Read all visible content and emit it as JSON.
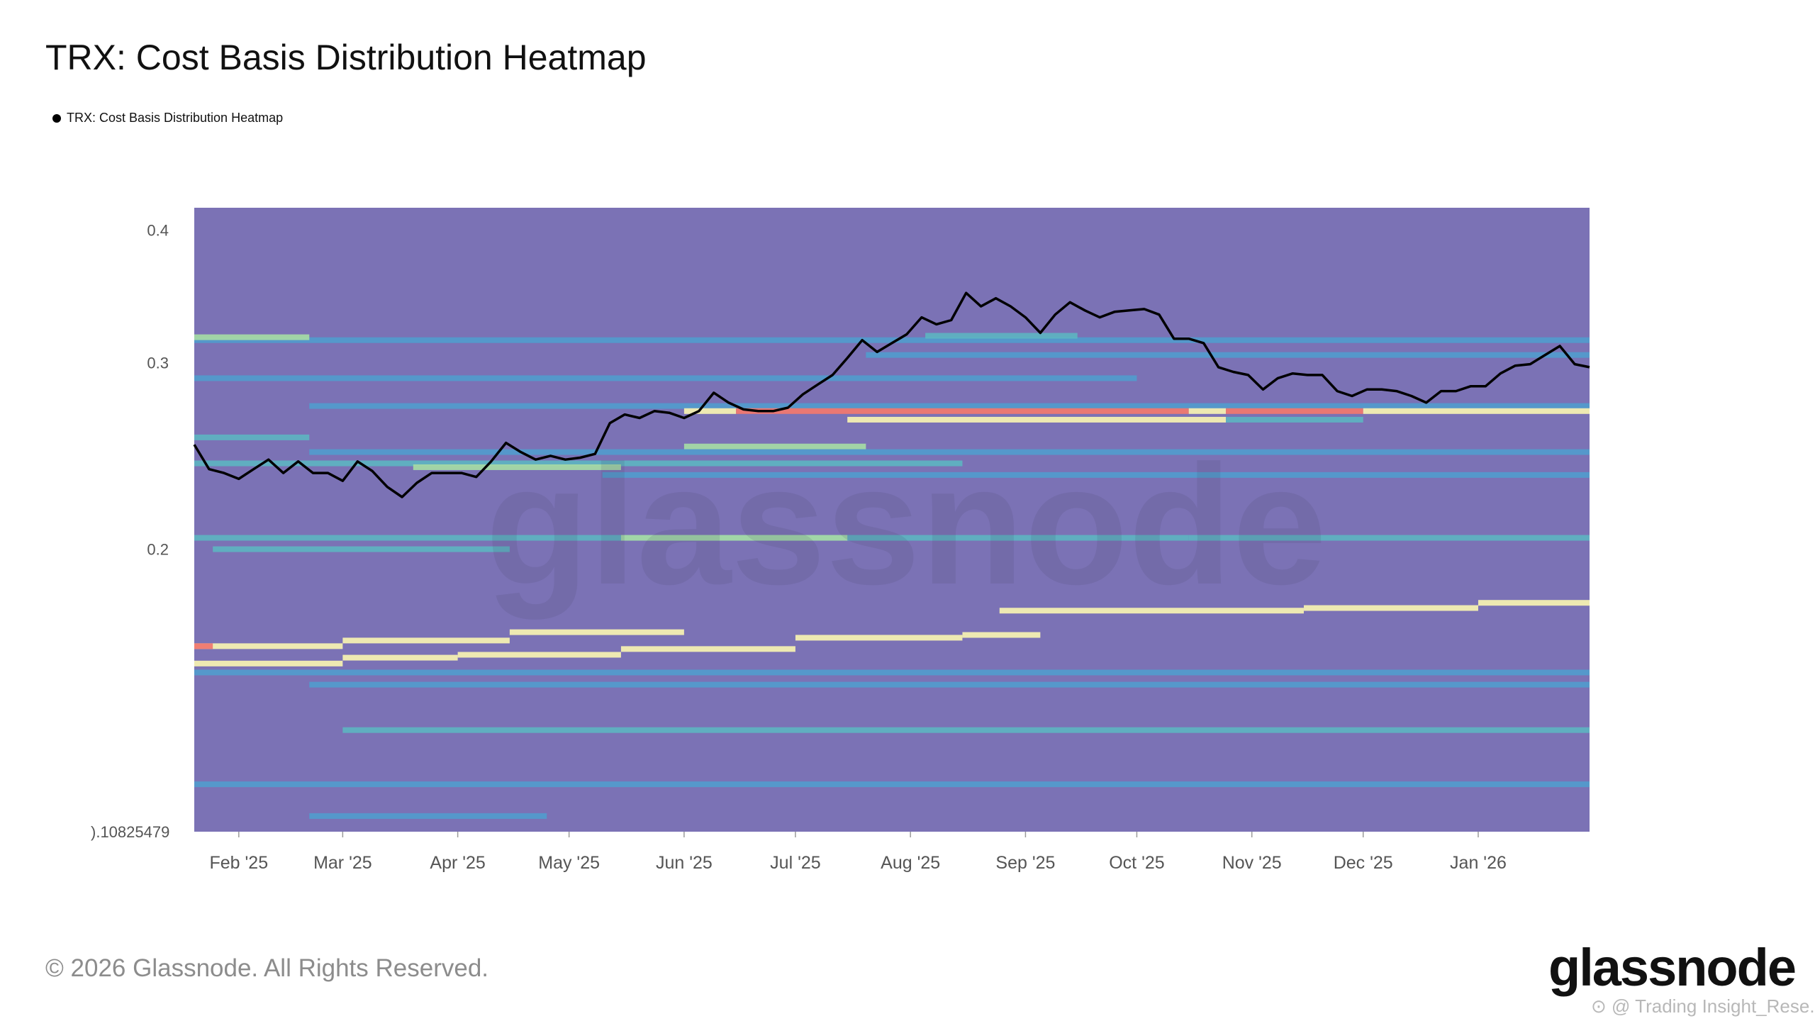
{
  "title": "TRX: Cost Basis Distribution Heatmap",
  "legend": {
    "label": "TRX: Cost Basis Distribution Heatmap",
    "marker_color": "#000000"
  },
  "footer": {
    "copyright": "© 2026 Glassnode. All Rights Reserved."
  },
  "brand": {
    "logo_text": "glassnode",
    "watermark_text": "glassnode"
  },
  "credit": {
    "text": "⊙ @ Trading Insight_Rese..."
  },
  "colors": {
    "background": "#7b72b5",
    "price_line": "#000000",
    "band_blue": "#4f9fcf",
    "band_teal": "#5cb8c2",
    "band_green": "#a4d8a5",
    "band_yellow": "#f4efb2",
    "band_red": "#f07870"
  },
  "chart_data": {
    "type": "heatmap",
    "title": "TRX: Cost Basis Distribution Heatmap",
    "x_axis": {
      "range": [
        "2025-01-20",
        "2026-01-31"
      ],
      "ticks": [
        "Feb '25",
        "Mar '25",
        "Apr '25",
        "May '25",
        "Jun '25",
        "Jul '25",
        "Aug '25",
        "Sep '25",
        "Oct '25",
        "Nov '25",
        "Dec '25",
        "Jan '26"
      ]
    },
    "y_axis": {
      "scale": "log",
      "range": [
        0.10825479,
        0.42
      ],
      "ticks": [
        "0.4",
        "0.3",
        "0.2",
        ").10825479"
      ]
    },
    "series": [
      {
        "name": "TRX: Cost Basis Distribution Heatmap",
        "type": "line",
        "points": [
          [
            "2025-01-20",
            0.251
          ],
          [
            "2025-01-24",
            0.238
          ],
          [
            "2025-01-28",
            0.236
          ],
          [
            "2025-02-01",
            0.233
          ],
          [
            "2025-02-05",
            0.238
          ],
          [
            "2025-02-09",
            0.243
          ],
          [
            "2025-02-13",
            0.236
          ],
          [
            "2025-02-17",
            0.242
          ],
          [
            "2025-02-21",
            0.236
          ],
          [
            "2025-02-25",
            0.236
          ],
          [
            "2025-03-01",
            0.232
          ],
          [
            "2025-03-05",
            0.242
          ],
          [
            "2025-03-09",
            0.237
          ],
          [
            "2025-03-13",
            0.229
          ],
          [
            "2025-03-17",
            0.224
          ],
          [
            "2025-03-21",
            0.231
          ],
          [
            "2025-03-25",
            0.236
          ],
          [
            "2025-03-29",
            0.236
          ],
          [
            "2025-04-02",
            0.236
          ],
          [
            "2025-04-06",
            0.234
          ],
          [
            "2025-04-10",
            0.242
          ],
          [
            "2025-04-14",
            0.252
          ],
          [
            "2025-04-18",
            0.247
          ],
          [
            "2025-04-22",
            0.243
          ],
          [
            "2025-04-26",
            0.245
          ],
          [
            "2025-04-30",
            0.243
          ],
          [
            "2025-05-04",
            0.244
          ],
          [
            "2025-05-08",
            0.246
          ],
          [
            "2025-05-12",
            0.263
          ],
          [
            "2025-05-16",
            0.268
          ],
          [
            "2025-05-20",
            0.266
          ],
          [
            "2025-05-24",
            0.27
          ],
          [
            "2025-05-28",
            0.269
          ],
          [
            "2025-06-01",
            0.266
          ],
          [
            "2025-06-05",
            0.27
          ],
          [
            "2025-06-09",
            0.281
          ],
          [
            "2025-06-13",
            0.275
          ],
          [
            "2025-06-17",
            0.271
          ],
          [
            "2025-06-21",
            0.27
          ],
          [
            "2025-06-25",
            0.27
          ],
          [
            "2025-06-29",
            0.272
          ],
          [
            "2025-07-03",
            0.28
          ],
          [
            "2025-07-07",
            0.286
          ],
          [
            "2025-07-11",
            0.292
          ],
          [
            "2025-07-15",
            0.303
          ],
          [
            "2025-07-19",
            0.315
          ],
          [
            "2025-07-23",
            0.307
          ],
          [
            "2025-07-27",
            0.313
          ],
          [
            "2025-07-31",
            0.319
          ],
          [
            "2025-08-04",
            0.331
          ],
          [
            "2025-08-08",
            0.326
          ],
          [
            "2025-08-12",
            0.329
          ],
          [
            "2025-08-16",
            0.349
          ],
          [
            "2025-08-20",
            0.339
          ],
          [
            "2025-08-24",
            0.345
          ],
          [
            "2025-08-28",
            0.339
          ],
          [
            "2025-09-01",
            0.331
          ],
          [
            "2025-09-05",
            0.32
          ],
          [
            "2025-09-09",
            0.333
          ],
          [
            "2025-09-13",
            0.342
          ],
          [
            "2025-09-17",
            0.336
          ],
          [
            "2025-09-21",
            0.331
          ],
          [
            "2025-09-25",
            0.335
          ],
          [
            "2025-09-29",
            0.336
          ],
          [
            "2025-10-03",
            0.337
          ],
          [
            "2025-10-07",
            0.333
          ],
          [
            "2025-10-11",
            0.316
          ],
          [
            "2025-10-15",
            0.316
          ],
          [
            "2025-10-19",
            0.313
          ],
          [
            "2025-10-23",
            0.297
          ],
          [
            "2025-10-27",
            0.294
          ],
          [
            "2025-10-31",
            0.292
          ],
          [
            "2025-11-04",
            0.283
          ],
          [
            "2025-11-08",
            0.29
          ],
          [
            "2025-11-12",
            0.293
          ],
          [
            "2025-11-16",
            0.292
          ],
          [
            "2025-11-20",
            0.292
          ],
          [
            "2025-11-24",
            0.282
          ],
          [
            "2025-11-28",
            0.279
          ],
          [
            "2025-12-02",
            0.283
          ],
          [
            "2025-12-06",
            0.283
          ],
          [
            "2025-12-10",
            0.282
          ],
          [
            "2025-12-14",
            0.279
          ],
          [
            "2025-12-18",
            0.275
          ],
          [
            "2025-12-22",
            0.282
          ],
          [
            "2025-12-26",
            0.282
          ],
          [
            "2025-12-30",
            0.285
          ],
          [
            "2026-01-03",
            0.285
          ],
          [
            "2026-01-07",
            0.293
          ],
          [
            "2026-01-11",
            0.298
          ],
          [
            "2026-01-15",
            0.299
          ],
          [
            "2026-01-19",
            0.305
          ],
          [
            "2026-01-23",
            0.311
          ],
          [
            "2026-01-27",
            0.299
          ],
          [
            "2026-01-31",
            0.297
          ]
        ]
      },
      {
        "name": "cost basis density",
        "type": "bands",
        "levels": [
          "blue",
          "teal",
          "green",
          "yellow",
          "red"
        ],
        "bands": [
          {
            "price": 0.315,
            "start": "2025-01-20",
            "end": "2026-01-31",
            "level": "blue"
          },
          {
            "price": 0.317,
            "start": "2025-01-20",
            "end": "2025-02-20",
            "level": "green"
          },
          {
            "price": 0.318,
            "start": "2025-08-05",
            "end": "2025-09-15",
            "level": "teal"
          },
          {
            "price": 0.305,
            "start": "2025-07-20",
            "end": "2026-01-31",
            "level": "blue"
          },
          {
            "price": 0.29,
            "start": "2025-01-20",
            "end": "2025-10-01",
            "level": "blue"
          },
          {
            "price": 0.273,
            "start": "2025-02-20",
            "end": "2026-01-31",
            "level": "blue"
          },
          {
            "price": 0.27,
            "start": "2025-06-01",
            "end": "2025-06-15",
            "level": "yellow"
          },
          {
            "price": 0.27,
            "start": "2025-06-15",
            "end": "2025-07-10",
            "level": "red"
          },
          {
            "price": 0.27,
            "start": "2025-07-10",
            "end": "2025-10-15",
            "level": "red"
          },
          {
            "price": 0.27,
            "start": "2025-10-15",
            "end": "2025-10-25",
            "level": "yellow"
          },
          {
            "price": 0.27,
            "start": "2025-10-25",
            "end": "2025-12-01",
            "level": "red"
          },
          {
            "price": 0.27,
            "start": "2025-12-01",
            "end": "2026-01-31",
            "level": "yellow"
          },
          {
            "price": 0.265,
            "start": "2025-07-15",
            "end": "2025-10-25",
            "level": "yellow"
          },
          {
            "price": 0.265,
            "start": "2025-10-25",
            "end": "2025-12-01",
            "level": "teal"
          },
          {
            "price": 0.255,
            "start": "2025-01-20",
            "end": "2025-02-20",
            "level": "teal"
          },
          {
            "price": 0.25,
            "start": "2025-06-01",
            "end": "2025-07-20",
            "level": "green"
          },
          {
            "price": 0.247,
            "start": "2025-02-20",
            "end": "2026-01-31",
            "level": "blue"
          },
          {
            "price": 0.241,
            "start": "2025-01-20",
            "end": "2025-08-15",
            "level": "teal"
          },
          {
            "price": 0.239,
            "start": "2025-03-20",
            "end": "2025-05-15",
            "level": "green"
          },
          {
            "price": 0.235,
            "start": "2025-05-10",
            "end": "2026-01-31",
            "level": "blue"
          },
          {
            "price": 0.205,
            "start": "2025-01-20",
            "end": "2025-10-15",
            "level": "teal"
          },
          {
            "price": 0.205,
            "start": "2025-05-15",
            "end": "2025-07-15",
            "level": "green"
          },
          {
            "price": 0.205,
            "start": "2025-10-15",
            "end": "2026-01-31",
            "level": "teal"
          },
          {
            "price": 0.2,
            "start": "2025-01-25",
            "end": "2025-04-15",
            "level": "teal"
          },
          {
            "price": 0.175,
            "start": "2025-08-25",
            "end": "2025-11-15",
            "level": "yellow"
          },
          {
            "price": 0.176,
            "start": "2025-11-15",
            "end": "2026-01-01",
            "level": "yellow"
          },
          {
            "price": 0.178,
            "start": "2026-01-01",
            "end": "2026-01-31",
            "level": "yellow"
          },
          {
            "price": 0.167,
            "start": "2025-04-15",
            "end": "2025-06-01",
            "level": "yellow"
          },
          {
            "price": 0.164,
            "start": "2025-03-01",
            "end": "2025-04-15",
            "level": "yellow"
          },
          {
            "price": 0.162,
            "start": "2025-01-20",
            "end": "2025-03-01",
            "level": "yellow"
          },
          {
            "price": 0.162,
            "start": "2025-01-20",
            "end": "2025-01-25",
            "level": "red"
          },
          {
            "price": 0.165,
            "start": "2025-07-01",
            "end": "2025-08-15",
            "level": "yellow"
          },
          {
            "price": 0.166,
            "start": "2025-08-15",
            "end": "2025-09-05",
            "level": "yellow"
          },
          {
            "price": 0.159,
            "start": "2025-04-01",
            "end": "2025-05-15",
            "level": "yellow"
          },
          {
            "price": 0.158,
            "start": "2025-03-01",
            "end": "2025-04-01",
            "level": "yellow"
          },
          {
            "price": 0.156,
            "start": "2025-01-20",
            "end": "2025-03-01",
            "level": "yellow"
          },
          {
            "price": 0.161,
            "start": "2025-05-15",
            "end": "2025-07-01",
            "level": "yellow"
          },
          {
            "price": 0.153,
            "start": "2025-01-20",
            "end": "2026-01-31",
            "level": "blue"
          },
          {
            "price": 0.149,
            "start": "2025-02-20",
            "end": "2026-01-31",
            "level": "blue"
          },
          {
            "price": 0.135,
            "start": "2025-03-01",
            "end": "2026-01-31",
            "level": "teal"
          },
          {
            "price": 0.12,
            "start": "2025-01-20",
            "end": "2026-01-31",
            "level": "blue"
          },
          {
            "price": 0.112,
            "start": "2025-02-20",
            "end": "2025-04-25",
            "level": "blue"
          }
        ]
      }
    ],
    "grid": false,
    "legend_position": "top-left"
  }
}
